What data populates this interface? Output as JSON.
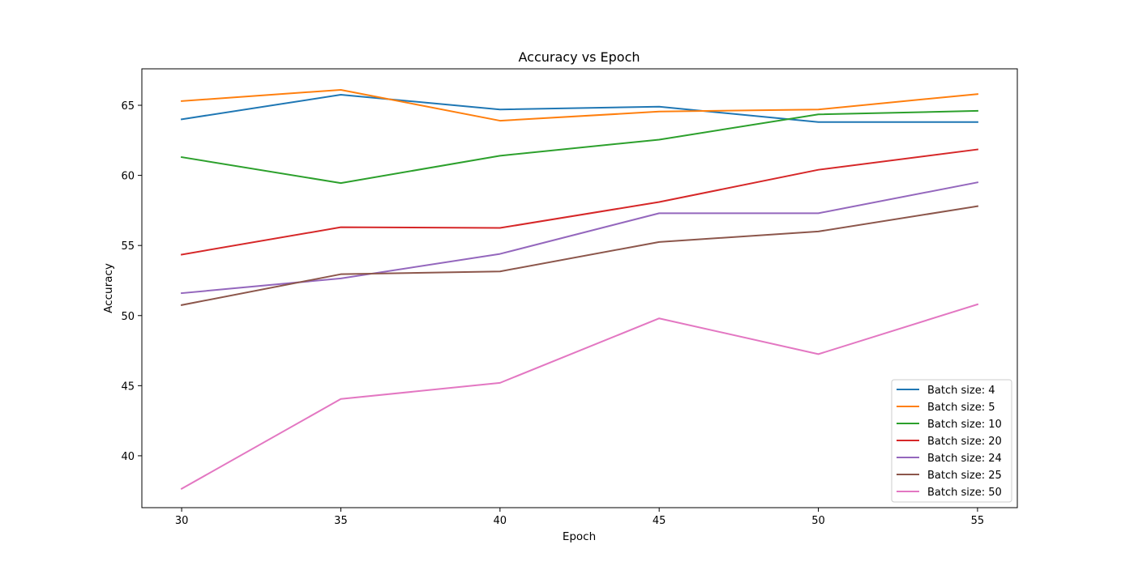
{
  "chart_data": {
    "type": "line",
    "title": "Accuracy vs Epoch",
    "xlabel": "Epoch",
    "ylabel": "Accuracy",
    "x": [
      30,
      35,
      40,
      45,
      50,
      55
    ],
    "xlim": [
      28.75,
      56.25
    ],
    "ylim": [
      36.3,
      67.6
    ],
    "xticks": [
      30,
      35,
      40,
      45,
      50,
      55
    ],
    "yticks": [
      40,
      45,
      50,
      55,
      60,
      65
    ],
    "grid": false,
    "legend_position": "lower right",
    "series": [
      {
        "name": "Batch size: 4",
        "color": "#1f77b4",
        "values": [
          64.0,
          65.75,
          64.7,
          64.9,
          63.8,
          63.8
        ]
      },
      {
        "name": "Batch size: 5",
        "color": "#ff7f0e",
        "values": [
          65.3,
          66.1,
          63.9,
          64.55,
          64.7,
          65.8
        ]
      },
      {
        "name": "Batch size: 10",
        "color": "#2ca02c",
        "values": [
          61.3,
          59.45,
          61.4,
          62.55,
          64.35,
          64.6
        ]
      },
      {
        "name": "Batch size: 20",
        "color": "#d62728",
        "values": [
          54.35,
          56.3,
          56.25,
          58.1,
          60.4,
          61.85
        ]
      },
      {
        "name": "Batch size: 24",
        "color": "#9467bd",
        "values": [
          51.6,
          52.65,
          54.4,
          57.3,
          57.3,
          59.5
        ]
      },
      {
        "name": "Batch size: 25",
        "color": "#8c564b",
        "values": [
          50.75,
          52.95,
          53.15,
          55.25,
          56.0,
          57.8
        ]
      },
      {
        "name": "Batch size: 50",
        "color": "#e377c2",
        "values": [
          37.65,
          44.05,
          45.2,
          49.8,
          47.25,
          50.8
        ]
      }
    ]
  }
}
